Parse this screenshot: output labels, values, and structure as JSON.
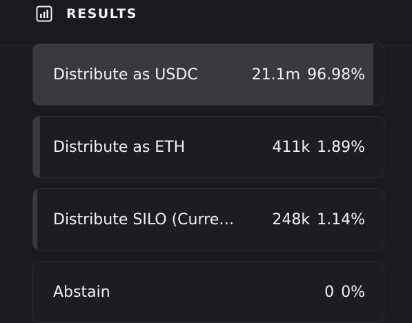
{
  "header": {
    "title": "RESULTS"
  },
  "results": [
    {
      "label": "Distribute as USDC",
      "votes": "21.1m",
      "percent": {
        "value": 96.98,
        "label": "96.98%"
      }
    },
    {
      "label": "Distribute as ETH",
      "votes": "411k",
      "percent": {
        "value": 1.89,
        "label": "1.89%"
      }
    },
    {
      "label": "Distribute SILO (Curre…",
      "votes": "248k",
      "percent": {
        "value": 1.14,
        "label": "1.14%"
      }
    },
    {
      "label": "Abstain",
      "votes": "0",
      "percent": {
        "value": 0,
        "label": "0%"
      }
    }
  ]
}
